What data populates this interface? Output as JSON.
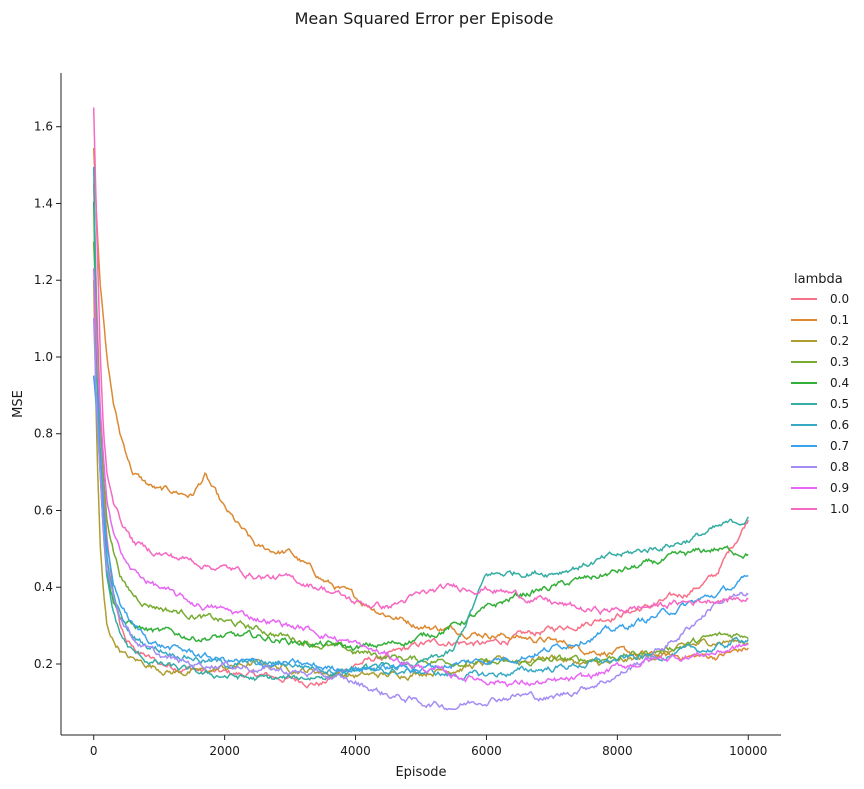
{
  "chart_data": {
    "type": "line",
    "title": "Mean Squared Error per Episode",
    "xlabel": "Episode",
    "ylabel": "MSE",
    "xlim": [
      -500,
      10500
    ],
    "ylim": [
      0.015,
      1.74
    ],
    "xticks": [
      0,
      2000,
      4000,
      6000,
      8000,
      10000
    ],
    "yticks": [
      0.2,
      0.4,
      0.6,
      0.8,
      1.0,
      1.2,
      1.4,
      1.6
    ],
    "grid": false,
    "legend": {
      "title": "lambda",
      "placement": "right"
    },
    "x": [
      0,
      50,
      100,
      150,
      200,
      300,
      400,
      500,
      600,
      800,
      1000,
      1200,
      1500,
      1700,
      2000,
      2500,
      3000,
      3500,
      4000,
      4500,
      5000,
      5500,
      6000,
      6500,
      7000,
      7500,
      8000,
      8500,
      9000,
      9500,
      10000
    ],
    "series": [
      {
        "name": "0.0",
        "color": "#f77189",
        "values": [
          1.45,
          1.1,
          0.85,
          0.65,
          0.52,
          0.38,
          0.3,
          0.26,
          0.24,
          0.22,
          0.2,
          0.195,
          0.19,
          0.18,
          0.175,
          0.17,
          0.16,
          0.15,
          0.2,
          0.22,
          0.25,
          0.26,
          0.25,
          0.27,
          0.29,
          0.31,
          0.33,
          0.35,
          0.38,
          0.43,
          0.58
        ]
      },
      {
        "name": "0.1",
        "color": "#dc8932",
        "values": [
          1.55,
          1.35,
          1.2,
          1.1,
          1.0,
          0.88,
          0.8,
          0.75,
          0.7,
          0.67,
          0.65,
          0.65,
          0.64,
          0.69,
          0.6,
          0.5,
          0.49,
          0.42,
          0.37,
          0.33,
          0.3,
          0.29,
          0.28,
          0.27,
          0.26,
          0.24,
          0.23,
          0.22,
          0.22,
          0.22,
          0.24
        ]
      },
      {
        "name": "0.2",
        "color": "#ae9d31",
        "values": [
          1.2,
          0.75,
          0.5,
          0.38,
          0.3,
          0.26,
          0.24,
          0.22,
          0.21,
          0.2,
          0.19,
          0.18,
          0.18,
          0.18,
          0.19,
          0.2,
          0.19,
          0.18,
          0.17,
          0.17,
          0.18,
          0.19,
          0.2,
          0.21,
          0.22,
          0.2,
          0.2,
          0.22,
          0.24,
          0.26,
          0.26
        ]
      },
      {
        "name": "0.3",
        "color": "#77ab31",
        "values": [
          1.3,
          1.05,
          0.82,
          0.68,
          0.58,
          0.5,
          0.44,
          0.4,
          0.38,
          0.36,
          0.35,
          0.34,
          0.33,
          0.32,
          0.31,
          0.29,
          0.27,
          0.25,
          0.23,
          0.22,
          0.21,
          0.21,
          0.2,
          0.2,
          0.21,
          0.21,
          0.22,
          0.23,
          0.25,
          0.27,
          0.28
        ]
      },
      {
        "name": "0.4",
        "color": "#33b039",
        "values": [
          1.4,
          0.95,
          0.7,
          0.55,
          0.45,
          0.37,
          0.33,
          0.31,
          0.3,
          0.29,
          0.28,
          0.28,
          0.27,
          0.27,
          0.27,
          0.27,
          0.26,
          0.25,
          0.24,
          0.25,
          0.27,
          0.3,
          0.34,
          0.38,
          0.4,
          0.42,
          0.44,
          0.46,
          0.48,
          0.5,
          0.49
        ]
      },
      {
        "name": "0.5",
        "color": "#36ada4",
        "values": [
          1.5,
          1.0,
          0.7,
          0.52,
          0.42,
          0.33,
          0.28,
          0.25,
          0.23,
          0.21,
          0.2,
          0.19,
          0.18,
          0.17,
          0.17,
          0.16,
          0.16,
          0.17,
          0.18,
          0.19,
          0.2,
          0.23,
          0.43,
          0.44,
          0.44,
          0.46,
          0.48,
          0.5,
          0.52,
          0.55,
          0.58
        ]
      },
      {
        "name": "0.6",
        "color": "#38a9c5",
        "values": [
          0.95,
          0.85,
          0.7,
          0.58,
          0.48,
          0.38,
          0.33,
          0.29,
          0.27,
          0.25,
          0.24,
          0.23,
          0.22,
          0.21,
          0.2,
          0.2,
          0.2,
          0.19,
          0.19,
          0.18,
          0.18,
          0.17,
          0.17,
          0.18,
          0.19,
          0.2,
          0.21,
          0.22,
          0.23,
          0.24,
          0.27
        ]
      },
      {
        "name": "0.7",
        "color": "#3ba3ec",
        "values": [
          0.95,
          0.9,
          0.75,
          0.6,
          0.5,
          0.41,
          0.36,
          0.33,
          0.3,
          0.27,
          0.25,
          0.24,
          0.23,
          0.22,
          0.21,
          0.2,
          0.2,
          0.19,
          0.19,
          0.19,
          0.19,
          0.2,
          0.21,
          0.22,
          0.24,
          0.27,
          0.29,
          0.32,
          0.35,
          0.38,
          0.42
        ]
      },
      {
        "name": "0.8",
        "color": "#a48cf4",
        "values": [
          1.1,
          0.85,
          0.7,
          0.55,
          0.46,
          0.38,
          0.33,
          0.3,
          0.27,
          0.24,
          0.22,
          0.21,
          0.2,
          0.2,
          0.2,
          0.19,
          0.18,
          0.17,
          0.15,
          0.12,
          0.1,
          0.09,
          0.11,
          0.12,
          0.11,
          0.14,
          0.17,
          0.22,
          0.28,
          0.36,
          0.38
        ]
      },
      {
        "name": "0.9",
        "color": "#e866f4",
        "values": [
          1.23,
          1.0,
          0.85,
          0.72,
          0.63,
          0.55,
          0.5,
          0.46,
          0.44,
          0.42,
          0.4,
          0.38,
          0.36,
          0.35,
          0.34,
          0.32,
          0.3,
          0.28,
          0.25,
          0.22,
          0.19,
          0.17,
          0.16,
          0.15,
          0.15,
          0.16,
          0.19,
          0.21,
          0.22,
          0.23,
          0.25
        ]
      },
      {
        "name": "1.0",
        "color": "#f668c2",
        "values": [
          1.65,
          1.3,
          1.0,
          0.8,
          0.7,
          0.63,
          0.58,
          0.55,
          0.52,
          0.5,
          0.49,
          0.48,
          0.47,
          0.46,
          0.45,
          0.43,
          0.42,
          0.4,
          0.36,
          0.35,
          0.38,
          0.4,
          0.4,
          0.38,
          0.36,
          0.34,
          0.34,
          0.35,
          0.36,
          0.37,
          0.37
        ]
      }
    ]
  }
}
